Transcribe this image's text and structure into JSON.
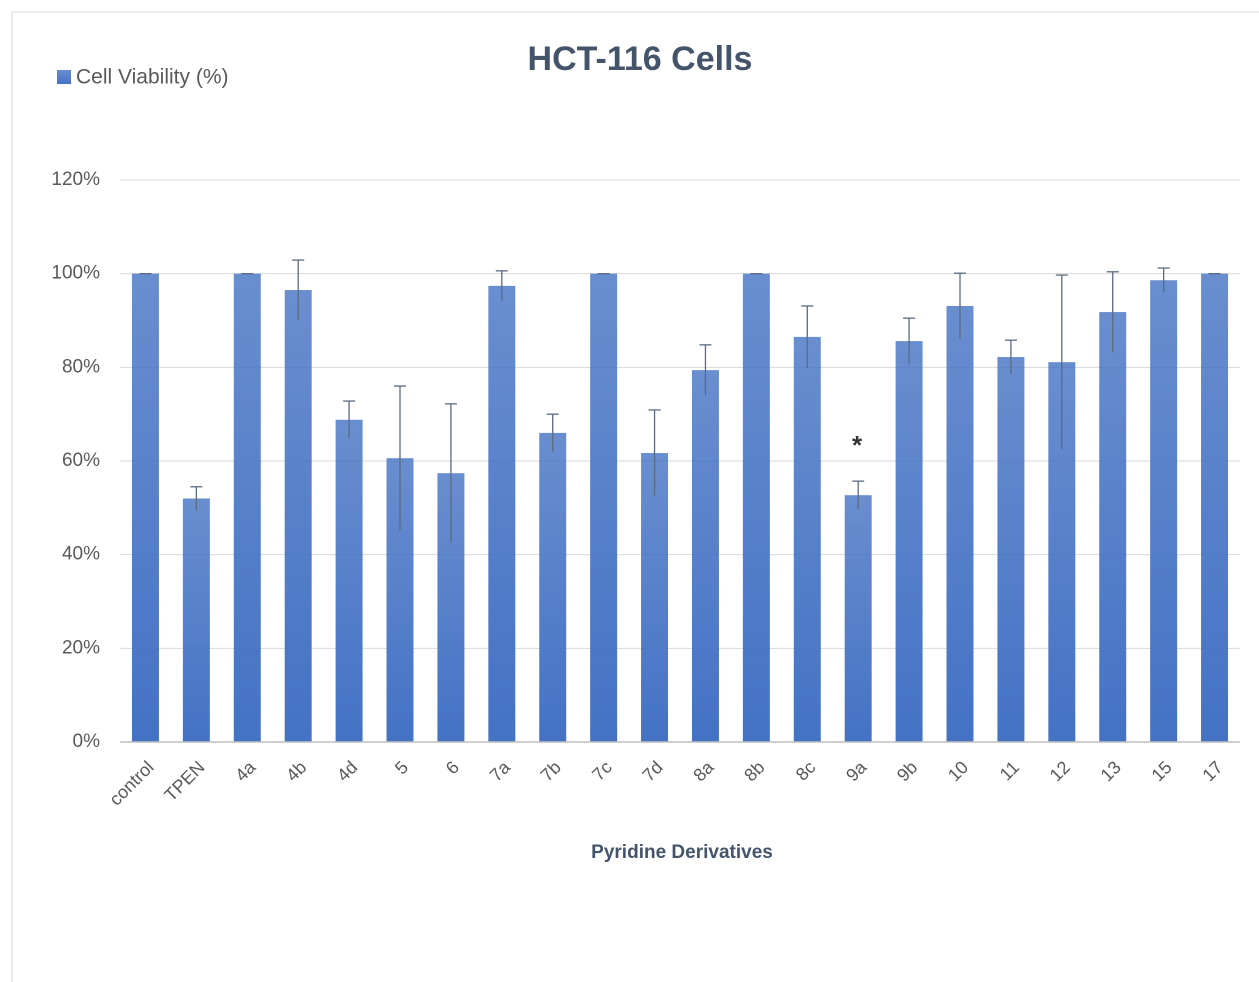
{
  "chart_data": {
    "type": "bar",
    "title": "HCT-116 Cells",
    "x_label": "Pyridine Derivatives",
    "categories": [
      "control",
      "TPEN",
      "4a",
      "4b",
      "4d",
      "5",
      "6",
      "7a",
      "7b",
      "7c",
      "7d",
      "8a",
      "8b",
      "8c",
      "9a",
      "9b",
      "10",
      "11",
      "12",
      "13",
      "15",
      "17"
    ],
    "series": [
      {
        "name": "Cell Viability (%)",
        "color": "#4472c4",
        "values": [
          100,
          52,
          100,
          96.5,
          68.8,
          60.6,
          57.4,
          97.4,
          66,
          100,
          61.7,
          79.4,
          100,
          86.5,
          52.7,
          85.6,
          93.1,
          82.2,
          81.1,
          91.8,
          98.6,
          100
        ],
        "errors": [
          0,
          2.5,
          0,
          6.4,
          4,
          15.4,
          14.8,
          3.2,
          4,
          0,
          9.2,
          5.4,
          0,
          6.6,
          3,
          4.9,
          7,
          3.6,
          18.6,
          8.6,
          2.6,
          0
        ]
      }
    ],
    "annotations": [
      "*"
    ],
    "ylim": [
      0,
      120
    ],
    "yticks": [
      {
        "value": 0,
        "label": "0%"
      },
      {
        "value": 20,
        "label": "20%"
      },
      {
        "value": 40,
        "label": "40%"
      },
      {
        "value": 60,
        "label": "60%"
      },
      {
        "value": 80,
        "label": "80%"
      },
      {
        "value": 100,
        "label": "100%"
      },
      {
        "value": 120,
        "label": "120%"
      }
    ],
    "grid": true,
    "legend": "top-left"
  }
}
